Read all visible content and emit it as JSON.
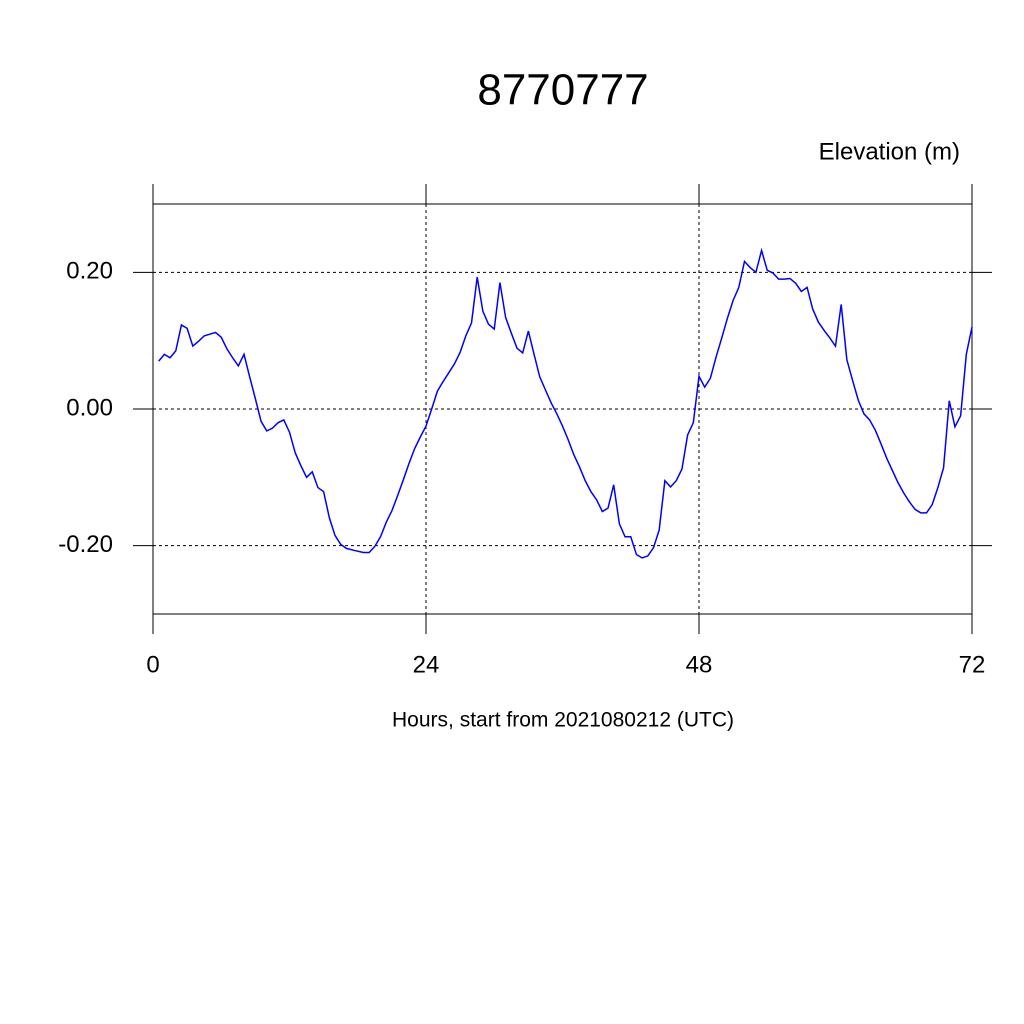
{
  "chart_data": {
    "type": "line",
    "title": "8770777",
    "ylabel": "Elevation (m)",
    "xlabel": "Hours, start from 2021080212 (UTC)",
    "color": "#0000ff",
    "grid": true,
    "xlim": [
      0,
      72
    ],
    "xticks": [
      0,
      24,
      48,
      72
    ],
    "ylim": [
      -0.3,
      0.3
    ],
    "yticks": [
      {
        "value": 0.2,
        "label": "0.20"
      },
      {
        "value": 0,
        "label": "0.00"
      },
      {
        "value": -0.2,
        "label": "-0.20"
      }
    ],
    "x": [
      0.5,
      1,
      1.5,
      2,
      2.5,
      3,
      3.5,
      4,
      4.5,
      5.5,
      6,
      6.5,
      7,
      7.5,
      8,
      8.5,
      9,
      9.5,
      10,
      10.5,
      11,
      11.5,
      12,
      12.5,
      13,
      13.5,
      14,
      14.5,
      15,
      15.5,
      16,
      16.5,
      17,
      17.7,
      18.5,
      19,
      19.5,
      20,
      20.5,
      21,
      21.5,
      22,
      22.5,
      23,
      23.5,
      24,
      24.5,
      25,
      25.5,
      26,
      26.5,
      27,
      27.5,
      28,
      28.5,
      29,
      29.5,
      30,
      30.5,
      31,
      31.5,
      32,
      32.5,
      33,
      33.5,
      34,
      34.5,
      35,
      35.5,
      36,
      36.5,
      37,
      37.5,
      38,
      38.5,
      39,
      39.5,
      40,
      40.5,
      41,
      41.5,
      42,
      42.5,
      43,
      43.5,
      44,
      44.5,
      45,
      45.5,
      46,
      46.5,
      47,
      47.5,
      48,
      48.5,
      49,
      49.5,
      50,
      50.5,
      51,
      51.5,
      52,
      52.5,
      53,
      53.5,
      54,
      54.5,
      55,
      55.5,
      56,
      56.5,
      57,
      57.5,
      58,
      58.5,
      59,
      59.5,
      60,
      60.5,
      61,
      61.5,
      62,
      62.5,
      63,
      63.5,
      64,
      64.5,
      65,
      65.5,
      66,
      66.5,
      67,
      67.5,
      68,
      68.5,
      69,
      69.5,
      70,
      70.5,
      71,
      71.5,
      72
    ],
    "values": [
      0.07,
      0.08,
      0.075,
      0.085,
      0.123,
      0.118,
      0.092,
      0.099,
      0.107,
      0.112,
      0.105,
      0.088,
      0.075,
      0.063,
      0.08,
      0.047,
      0.015,
      -0.018,
      -0.032,
      -0.028,
      -0.02,
      -0.016,
      -0.034,
      -0.064,
      -0.083,
      -0.1,
      -0.092,
      -0.115,
      -0.121,
      -0.159,
      -0.185,
      -0.198,
      -0.204,
      -0.207,
      -0.21,
      -0.21,
      -0.201,
      -0.187,
      -0.166,
      -0.149,
      -0.127,
      -0.104,
      -0.08,
      -0.058,
      -0.041,
      -0.025,
      0,
      0.026,
      0.04,
      0.053,
      0.066,
      0.083,
      0.107,
      0.126,
      0.193,
      0.143,
      0.124,
      0.117,
      0.185,
      0.134,
      0.111,
      0.089,
      0.082,
      0.114,
      0.08,
      0.047,
      0.028,
      0.009,
      -0.007,
      -0.025,
      -0.045,
      -0.067,
      -0.085,
      -0.105,
      -0.121,
      -0.133,
      -0.15,
      -0.145,
      -0.111,
      -0.168,
      -0.187,
      -0.187,
      -0.213,
      -0.218,
      -0.215,
      -0.203,
      -0.177,
      -0.105,
      -0.114,
      -0.105,
      -0.088,
      -0.038,
      -0.02,
      0.048,
      0.032,
      0.045,
      0.076,
      0.104,
      0.133,
      0.159,
      0.178,
      0.216,
      0.207,
      0.2,
      0.232,
      0.203,
      0.199,
      0.19,
      0.19,
      0.191,
      0.184,
      0.172,
      0.178,
      0.146,
      0.127,
      0.115,
      0.104,
      0.092,
      0.153,
      0.072,
      0.042,
      0.013,
      -0.007,
      -0.016,
      -0.031,
      -0.051,
      -0.072,
      -0.09,
      -0.108,
      -0.123,
      -0.136,
      -0.147,
      -0.152,
      -0.152,
      -0.14,
      -0.115,
      -0.086,
      0.012,
      -0.026,
      -0.01,
      0.08,
      0.12
    ]
  }
}
